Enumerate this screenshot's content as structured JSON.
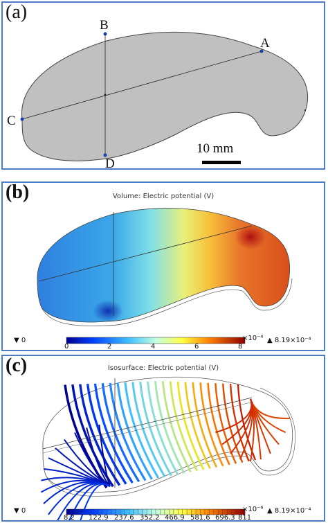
{
  "panel_a": {
    "label": "(a)",
    "points": {
      "A": "A",
      "B": "B",
      "C": "C",
      "D": "D"
    },
    "scale_bar": "10 mm",
    "shape_color": "#c0c0c0"
  },
  "panel_b": {
    "label": "(b)",
    "title": "Volume: Electric potential (V)",
    "min_marker": "▼ 0",
    "max_marker": "▲ 8.19×10⁻⁴",
    "colorbar_ticks": [
      "0",
      "2",
      "4",
      "6",
      "8"
    ],
    "colorbar_exponent": "×10⁻⁴"
  },
  "panel_c": {
    "label": "(c)",
    "title": "Isosurface: Electric potential (V)",
    "min_marker": "▼ 0",
    "max_marker": "▲ 8.19×10⁻⁴",
    "colorbar_ticks": [
      "8.2",
      "122.9",
      "237.6",
      "352.2",
      "466.9",
      "581.6",
      "696.3",
      "811"
    ],
    "colorbar_exponent": "×10⁻⁶"
  }
}
